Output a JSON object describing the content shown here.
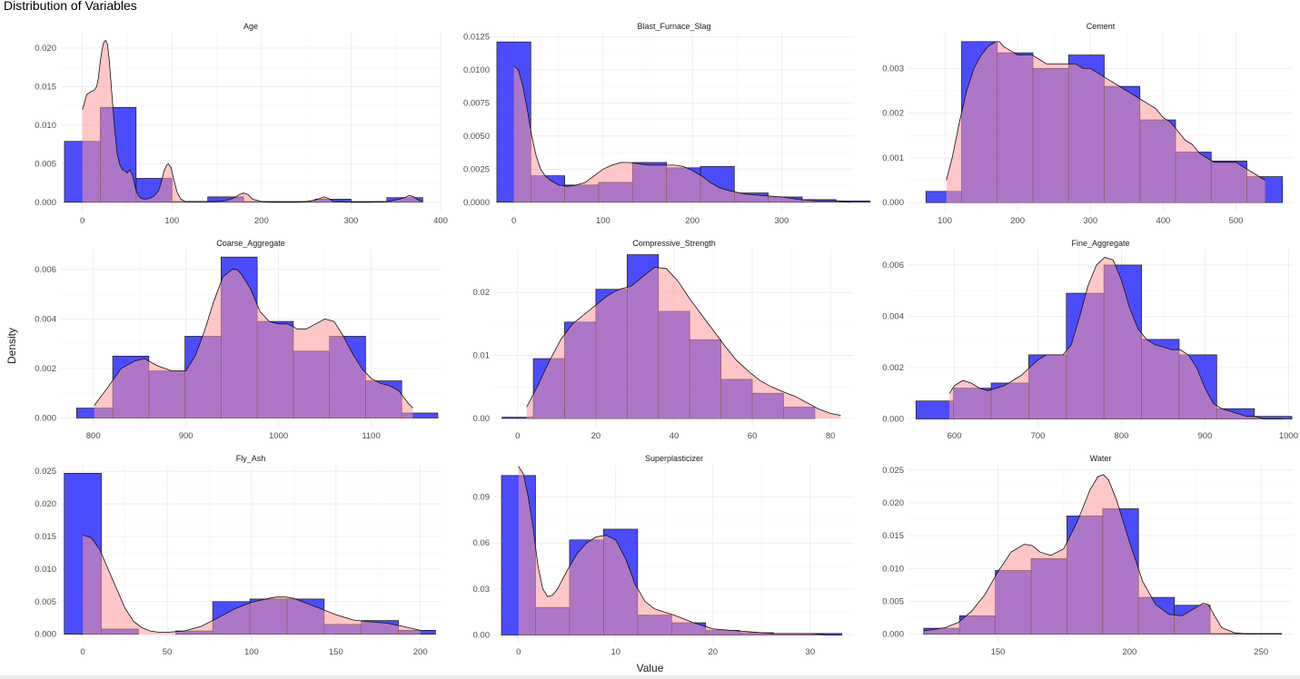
{
  "title": "Distribution of Variables",
  "xlabel": "Value",
  "ylabel": "Density",
  "colors": {
    "histogram": "#0000ff",
    "density": "#ff9999",
    "grid": "#ebebeb"
  },
  "chart_data": [
    {
      "type": "bar",
      "panel": "Age",
      "title": "Age",
      "bin_edges": [
        -20,
        20,
        60,
        100,
        140,
        180,
        220,
        260,
        300,
        340,
        380
      ],
      "values": [
        0.0079,
        0.0123,
        0.0031,
        0.0001,
        0.0007,
        0.0001,
        0.0001,
        0.0004,
        0.0001,
        0.0006
      ],
      "density_x": [
        0,
        3,
        5,
        8,
        10,
        13,
        16,
        18,
        20,
        22,
        24,
        26,
        28,
        30,
        33,
        36,
        39,
        42,
        45,
        48,
        50,
        53,
        56,
        60,
        63,
        66,
        70,
        75,
        80,
        85,
        88,
        91,
        94,
        96,
        99,
        102,
        106,
        110,
        115,
        120,
        130,
        140,
        150,
        160,
        170,
        175,
        180,
        185,
        190,
        200,
        210,
        220,
        240,
        250,
        260,
        265,
        270,
        275,
        280,
        290,
        300,
        320,
        340,
        350,
        360,
        365,
        370,
        375,
        380
      ],
      "density_y": [
        0.012,
        0.0132,
        0.014,
        0.0142,
        0.0144,
        0.0145,
        0.015,
        0.0162,
        0.0183,
        0.0198,
        0.0208,
        0.021,
        0.0205,
        0.0185,
        0.014,
        0.0095,
        0.0062,
        0.0048,
        0.0042,
        0.004,
        0.0038,
        0.0042,
        0.0035,
        0.0015,
        0.0008,
        0.0005,
        0.0004,
        0.0005,
        0.0008,
        0.0015,
        0.0025,
        0.004,
        0.0048,
        0.005,
        0.0045,
        0.003,
        0.0012,
        0.0004,
        0.0001,
        0.0001,
        0.0001,
        0.0001,
        0.0001,
        0.0002,
        0.0006,
        0.001,
        0.0012,
        0.001,
        0.0004,
        0.0001,
        0.0,
        0.0,
        0.0,
        0.0001,
        0.0003,
        0.0005,
        0.0007,
        0.0005,
        0.0001,
        0.0001,
        0.0,
        0.0,
        0.0001,
        0.0003,
        0.0006,
        0.0009,
        0.0007,
        0.0003,
        0.0001
      ],
      "xlim": [
        -24,
        400
      ],
      "ylim": [
        -0.0012,
        0.022
      ],
      "xticks": [
        0,
        100,
        200,
        300,
        400
      ],
      "yticks": [
        0,
        0.005,
        0.01,
        0.015,
        0.02
      ],
      "xtick_labels": [
        "0",
        "100",
        "200",
        "300",
        "400"
      ],
      "ytick_labels": [
        "0.000",
        "0.005",
        "0.010",
        "0.015",
        "0.020"
      ]
    },
    {
      "type": "bar",
      "panel": "Blast_Furnace_Slag",
      "title": "Blast_Furnace_Slag",
      "bin_edges": [
        -19,
        19,
        57,
        95,
        133,
        171,
        209,
        247,
        285,
        323,
        361,
        399
      ],
      "values": [
        0.0121,
        0.002,
        0.0013,
        0.0015,
        0.003,
        0.0026,
        0.0027,
        0.0007,
        0.0004,
        0.0002,
        0.0001
      ],
      "density_x": [
        0,
        5,
        10,
        15,
        20,
        25,
        30,
        35,
        40,
        45,
        50,
        60,
        70,
        80,
        90,
        100,
        110,
        120,
        130,
        140,
        150,
        160,
        170,
        180,
        190,
        200,
        210,
        220,
        230,
        240,
        260,
        280,
        300,
        320,
        340,
        360,
        377
      ],
      "density_y": [
        0.0103,
        0.01,
        0.0088,
        0.007,
        0.005,
        0.0035,
        0.0025,
        0.002,
        0.0017,
        0.0015,
        0.0013,
        0.0012,
        0.0013,
        0.0015,
        0.002,
        0.0025,
        0.0028,
        0.003,
        0.003,
        0.0029,
        0.0028,
        0.0028,
        0.0028,
        0.0028,
        0.0027,
        0.0024,
        0.002,
        0.0015,
        0.0011,
        0.0009,
        0.0006,
        0.0005,
        0.0004,
        0.0002,
        0.0001,
        0.0001,
        0.0
      ],
      "xlim": [
        -22,
        381
      ],
      "ylim": [
        -0.0007,
        0.0128
      ],
      "xticks": [
        0,
        100,
        200,
        300
      ],
      "yticks": [
        0,
        0.0025,
        0.005,
        0.0075,
        0.01,
        0.0125
      ],
      "xtick_labels": [
        "0",
        "100",
        "200",
        "300"
      ],
      "ytick_labels": [
        "0.0000",
        "0.0025",
        "0.0050",
        "0.0075",
        "0.0100",
        "0.0125"
      ]
    },
    {
      "type": "bar",
      "panel": "Cement",
      "title": "Cement",
      "bin_edges": [
        74,
        123,
        172,
        221,
        270,
        319,
        368,
        417,
        466,
        515,
        564
      ],
      "values": [
        0.00025,
        0.0036,
        0.00335,
        0.003,
        0.0033,
        0.0026,
        0.00185,
        0.00113,
        0.00093,
        0.00058
      ],
      "density_x": [
        102,
        110,
        120,
        130,
        140,
        150,
        160,
        170,
        175,
        180,
        190,
        200,
        210,
        220,
        230,
        240,
        250,
        260,
        270,
        280,
        290,
        300,
        310,
        320,
        330,
        340,
        350,
        360,
        370,
        380,
        390,
        400,
        410,
        420,
        430,
        440,
        450,
        460,
        470,
        480,
        490,
        500,
        510,
        520,
        530,
        540
      ],
      "density_y": [
        0.0005,
        0.001,
        0.0018,
        0.0025,
        0.003,
        0.0033,
        0.0035,
        0.0036,
        0.0036,
        0.0035,
        0.0034,
        0.0033,
        0.0033,
        0.0033,
        0.0032,
        0.0031,
        0.0031,
        0.0031,
        0.0031,
        0.0031,
        0.003,
        0.003,
        0.0029,
        0.0028,
        0.0027,
        0.0026,
        0.0025,
        0.0024,
        0.0023,
        0.0022,
        0.0021,
        0.0019,
        0.0018,
        0.0016,
        0.0014,
        0.0013,
        0.0011,
        0.001,
        0.0009,
        0.0009,
        0.0009,
        0.0009,
        0.0008,
        0.0007,
        0.0006,
        0.0005
      ],
      "xlim": [
        50,
        578
      ],
      "ylim": [
        -0.0002,
        0.0038
      ],
      "xticks": [
        100,
        200,
        300,
        400,
        500
      ],
      "yticks": [
        0,
        0.001,
        0.002,
        0.003
      ],
      "xtick_labels": [
        "100",
        "200",
        "300",
        "400",
        "500"
      ],
      "ytick_labels": [
        "0.000",
        "0.001",
        "0.002",
        "0.003"
      ]
    },
    {
      "type": "bar",
      "panel": "Coarse_Aggregate",
      "title": "Coarse_Aggregate",
      "bin_edges": [
        782,
        821,
        860,
        899,
        938,
        977,
        1016,
        1055,
        1094,
        1133,
        1172
      ],
      "values": [
        0.0004,
        0.0025,
        0.0019,
        0.0033,
        0.0065,
        0.0039,
        0.0027,
        0.0033,
        0.0015,
        0.0002
      ],
      "density_x": [
        801,
        815,
        830,
        845,
        855,
        870,
        885,
        900,
        910,
        920,
        930,
        940,
        950,
        955,
        960,
        970,
        980,
        990,
        1000,
        1010,
        1020,
        1030,
        1040,
        1050,
        1060,
        1070,
        1080,
        1090,
        1100,
        1110,
        1120,
        1130,
        1140,
        1145
      ],
      "density_y": [
        0.0005,
        0.0012,
        0.002,
        0.0023,
        0.0024,
        0.0021,
        0.0019,
        0.0019,
        0.0025,
        0.0035,
        0.0047,
        0.0057,
        0.006,
        0.006,
        0.0058,
        0.0052,
        0.0043,
        0.0039,
        0.0038,
        0.0038,
        0.0036,
        0.0036,
        0.0038,
        0.004,
        0.0039,
        0.0033,
        0.0026,
        0.002,
        0.0016,
        0.0014,
        0.0013,
        0.0011,
        0.0006,
        0.0004
      ],
      "xlim": [
        765,
        1175
      ],
      "ylim": [
        -0.00035,
        0.0068
      ],
      "xticks": [
        800,
        900,
        1000,
        1100
      ],
      "yticks": [
        0,
        0.002,
        0.004,
        0.006
      ],
      "xtick_labels": [
        "800",
        "900",
        "1000",
        "1100"
      ],
      "ytick_labels": [
        "0.000",
        "0.002",
        "0.004",
        "0.006"
      ]
    },
    {
      "type": "bar",
      "panel": "Compressive_Strength",
      "title": "Compressive_Strength",
      "bin_edges": [
        -4,
        4,
        12,
        20,
        28,
        36,
        44,
        52,
        60,
        68,
        76,
        84
      ],
      "values": [
        0.0002,
        0.0095,
        0.0153,
        0.0205,
        0.026,
        0.017,
        0.0125,
        0.0062,
        0.004,
        0.0018,
        0.0
      ],
      "density_x": [
        2.3,
        5,
        8,
        11,
        14,
        17,
        20,
        23,
        26,
        29,
        32,
        35,
        38,
        41,
        44,
        47,
        50,
        53,
        56,
        59,
        62,
        65,
        68,
        71,
        74,
        77,
        80,
        82.6
      ],
      "density_y": [
        0.0018,
        0.005,
        0.009,
        0.0125,
        0.015,
        0.0165,
        0.018,
        0.0195,
        0.0205,
        0.021,
        0.0225,
        0.024,
        0.0238,
        0.0218,
        0.019,
        0.0165,
        0.014,
        0.0115,
        0.0092,
        0.0075,
        0.006,
        0.005,
        0.0042,
        0.0035,
        0.0025,
        0.0015,
        0.0008,
        0.0005
      ],
      "xlim": [
        -6,
        86
      ],
      "ylim": [
        -0.0013,
        0.0268
      ],
      "xticks": [
        0,
        20,
        40,
        60,
        80
      ],
      "yticks": [
        0,
        0.01,
        0.02
      ],
      "xtick_labels": [
        "0",
        "20",
        "40",
        "60",
        "80"
      ],
      "ytick_labels": [
        "0.00",
        "0.01",
        "0.02"
      ]
    },
    {
      "type": "bar",
      "panel": "Fine_Aggregate",
      "title": "Fine_Aggregate",
      "bin_edges": [
        554,
        599,
        644,
        689,
        734,
        779,
        824,
        869,
        914,
        959,
        1004
      ],
      "values": [
        0.0007,
        0.0012,
        0.0014,
        0.0025,
        0.0049,
        0.006,
        0.0031,
        0.0025,
        0.0004,
        0.0001
      ],
      "density_x": [
        594,
        600,
        610,
        620,
        630,
        640,
        650,
        660,
        670,
        680,
        690,
        700,
        710,
        720,
        730,
        740,
        750,
        760,
        770,
        780,
        790,
        800,
        810,
        820,
        830,
        840,
        850,
        860,
        870,
        880,
        890,
        900,
        910,
        920,
        930,
        940,
        950,
        960,
        970,
        980,
        993
      ],
      "density_y": [
        0.001,
        0.0013,
        0.0015,
        0.0014,
        0.0012,
        0.0011,
        0.0012,
        0.0013,
        0.0015,
        0.0017,
        0.002,
        0.0023,
        0.0025,
        0.0025,
        0.0025,
        0.0029,
        0.004,
        0.0052,
        0.006,
        0.0063,
        0.0062,
        0.0054,
        0.0043,
        0.0035,
        0.0031,
        0.0029,
        0.0028,
        0.0027,
        0.0027,
        0.0025,
        0.002,
        0.0012,
        0.0006,
        0.0004,
        0.0003,
        0.0002,
        0.0001,
        0.0001,
        0.0,
        0.0,
        0.0
      ],
      "xlim": [
        545,
        1005
      ],
      "ylim": [
        -0.0003,
        0.0066
      ],
      "xticks": [
        600,
        700,
        800,
        900,
        1000
      ],
      "yticks": [
        0,
        0.002,
        0.004,
        0.006
      ],
      "xtick_labels": [
        "600",
        "700",
        "800",
        "900",
        "1000"
      ],
      "ytick_labels": [
        "0.000",
        "0.002",
        "0.004",
        "0.006"
      ]
    },
    {
      "type": "bar",
      "panel": "Fly_Ash",
      "title": "Fly_Ash",
      "bin_edges": [
        -11,
        11,
        33,
        55,
        77,
        99,
        121,
        143,
        165,
        187,
        209
      ],
      "values": [
        0.0247,
        0.0008,
        0.0,
        0.0005,
        0.005,
        0.0054,
        0.0054,
        0.0015,
        0.0021,
        0.0006
      ],
      "density_x": [
        0,
        5,
        10,
        15,
        20,
        25,
        30,
        35,
        40,
        45,
        50,
        60,
        70,
        80,
        90,
        100,
        110,
        115,
        120,
        125,
        130,
        140,
        150,
        160,
        170,
        180,
        190,
        200
      ],
      "density_y": [
        0.0152,
        0.0148,
        0.013,
        0.01,
        0.007,
        0.004,
        0.002,
        0.001,
        0.0005,
        0.0003,
        0.0003,
        0.0005,
        0.0012,
        0.0025,
        0.0039,
        0.0049,
        0.0055,
        0.0057,
        0.0057,
        0.0055,
        0.005,
        0.004,
        0.003,
        0.0022,
        0.0019,
        0.0017,
        0.0012,
        0.0006
      ],
      "xlim": [
        -13,
        212
      ],
      "ylim": [
        -0.0013,
        0.026
      ],
      "xticks": [
        0,
        50,
        100,
        150,
        200
      ],
      "yticks": [
        0,
        0.005,
        0.01,
        0.015,
        0.02,
        0.025
      ],
      "xtick_labels": [
        "0",
        "50",
        "100",
        "150",
        "200"
      ],
      "ytick_labels": [
        "0.000",
        "0.005",
        "0.010",
        "0.015",
        "0.020",
        "0.025"
      ]
    },
    {
      "type": "bar",
      "panel": "Superplasticizer",
      "title": "Superplasticizer",
      "bin_edges": [
        -1.75,
        1.75,
        5.25,
        8.75,
        12.25,
        15.75,
        19.25,
        22.75,
        26.25,
        29.75,
        33.25
      ],
      "values": [
        0.104,
        0.018,
        0.062,
        0.069,
        0.013,
        0.008,
        0.003,
        0.0015,
        0.001,
        0.001
      ],
      "density_x": [
        0,
        0.5,
        1,
        1.5,
        2,
        2.5,
        3,
        3.5,
        4,
        5,
        6,
        7,
        8,
        9,
        10,
        11,
        12,
        13,
        14,
        15,
        16,
        18,
        20,
        22,
        24,
        26,
        28,
        30,
        32,
        33
      ],
      "density_y": [
        0.11,
        0.105,
        0.09,
        0.07,
        0.045,
        0.03,
        0.025,
        0.026,
        0.03,
        0.042,
        0.053,
        0.06,
        0.064,
        0.065,
        0.062,
        0.05,
        0.033,
        0.022,
        0.017,
        0.015,
        0.013,
        0.008,
        0.004,
        0.003,
        0.002,
        0.001,
        0.001,
        0.001,
        0.0,
        0.0
      ],
      "xlim": [
        -2.5,
        34.5
      ],
      "ylim": [
        -0.005,
        0.111
      ],
      "xticks": [
        0,
        10,
        20,
        30
      ],
      "yticks": [
        0,
        0.03,
        0.06,
        0.09
      ],
      "xtick_labels": [
        "0",
        "10",
        "20",
        "30"
      ],
      "ytick_labels": [
        "0.00",
        "0.03",
        "0.06",
        "0.09"
      ]
    },
    {
      "type": "bar",
      "panel": "Water",
      "title": "Water",
      "bin_edges": [
        121.8,
        135.4,
        149.0,
        162.6,
        176.2,
        189.8,
        203.4,
        217.0,
        230.6,
        244.2,
        257.8
      ],
      "values": [
        0.0009,
        0.0028,
        0.0097,
        0.0115,
        0.018,
        0.0191,
        0.0056,
        0.0044,
        0.0001,
        0.0001
      ],
      "density_x": [
        122,
        130,
        135,
        140,
        145,
        150,
        155,
        160,
        163,
        166,
        170,
        175,
        180,
        185,
        188,
        190,
        192,
        195,
        200,
        205,
        210,
        215,
        220,
        225,
        228,
        230,
        232,
        235,
        240,
        247
      ],
      "density_y": [
        0.0005,
        0.001,
        0.0018,
        0.0035,
        0.006,
        0.0095,
        0.0125,
        0.0137,
        0.0135,
        0.0125,
        0.012,
        0.013,
        0.017,
        0.022,
        0.024,
        0.0243,
        0.0235,
        0.0205,
        0.014,
        0.008,
        0.0045,
        0.003,
        0.0028,
        0.004,
        0.0047,
        0.0045,
        0.003,
        0.001,
        0.0002,
        0.0
      ],
      "xlim": [
        116,
        262
      ],
      "ylim": [
        -0.0013,
        0.0258
      ],
      "xticks": [
        150,
        200,
        250
      ],
      "yticks": [
        0,
        0.005,
        0.01,
        0.015,
        0.02,
        0.025
      ],
      "xtick_labels": [
        "150",
        "200",
        "250"
      ],
      "ytick_labels": [
        "0.000",
        "0.005",
        "0.010",
        "0.015",
        "0.020",
        "0.025"
      ]
    }
  ]
}
